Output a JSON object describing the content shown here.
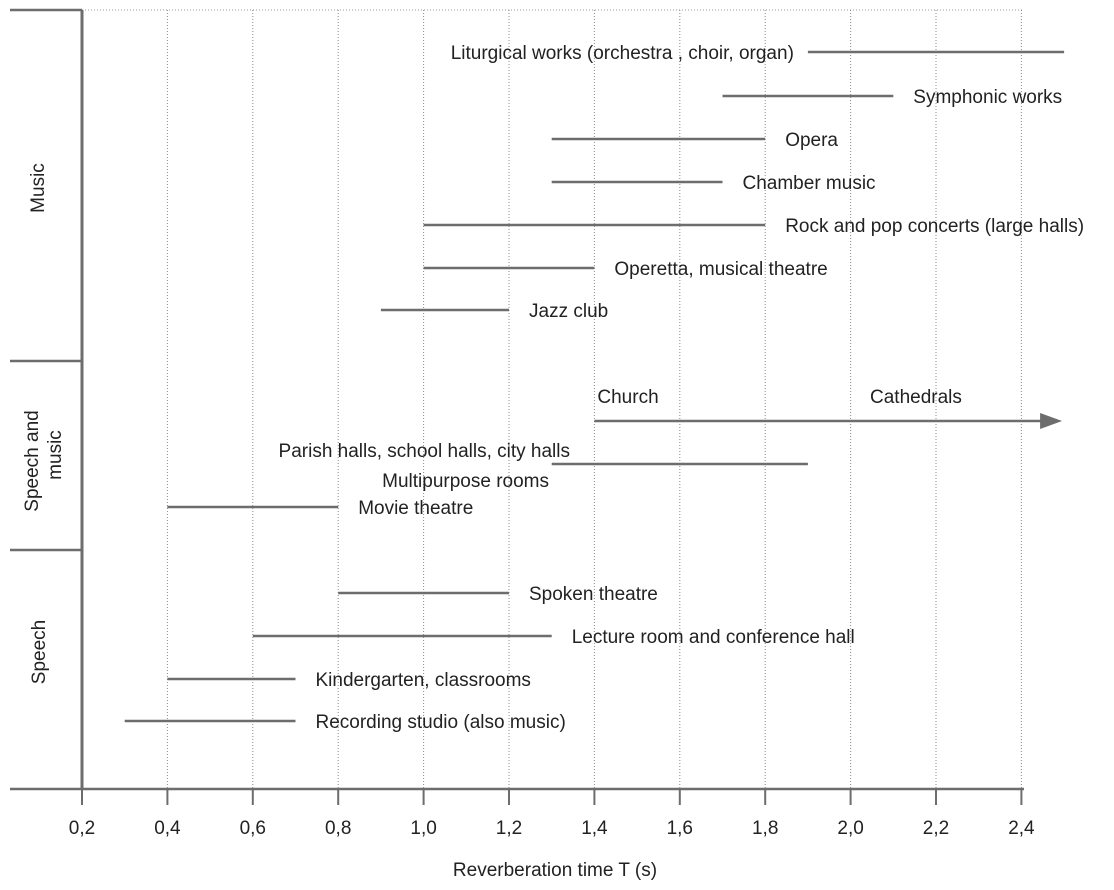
{
  "chart_data": {
    "type": "range-bar",
    "xlabel": "Reverberation time T (s)",
    "xlim": [
      0.2,
      2.4
    ],
    "x_ticks": [
      "0,2",
      "0,4",
      "0,6",
      "0,8",
      "1,0",
      "1,2",
      "1,4",
      "1,6",
      "1,8",
      "2,0",
      "2,2",
      "2,4"
    ],
    "grid": "vertical dotted",
    "bar_color": "#6d6d6d",
    "groups": [
      {
        "name": "Music",
        "rows": [
          0,
          6
        ]
      },
      {
        "name": "Speech and music",
        "rows": [
          7,
          9
        ]
      },
      {
        "name": "Speech",
        "rows": [
          10,
          13
        ]
      }
    ],
    "series": [
      {
        "label": "Liturgical   works (orchestra , choir, organ)",
        "start": 1.9,
        "end": 2.5,
        "label_side": "left"
      },
      {
        "label": "Symphonic  works",
        "start": 1.7,
        "end": 2.1,
        "label_side": "right"
      },
      {
        "label": "Opera",
        "start": 1.3,
        "end": 1.8,
        "label_side": "right"
      },
      {
        "label": "Chamber music",
        "start": 1.3,
        "end": 1.7,
        "label_side": "right"
      },
      {
        "label": "Rock and pop concerts (large halls)",
        "start": 1.0,
        "end": 1.8,
        "label_side": "right"
      },
      {
        "label": "Operetta, musical theatre",
        "start": 1.0,
        "end": 1.4,
        "label_side": "right"
      },
      {
        "label": "Jazz club",
        "start": 0.9,
        "end": 1.2,
        "label_side": "right"
      },
      {
        "label": "Church",
        "label2": "Cathedrals",
        "start": 1.4,
        "end": 2.5,
        "arrow": true,
        "label_side": "above"
      },
      {
        "label": "Parish halls, school halls, city halls",
        "label2": "Multipurpose rooms",
        "start": 1.3,
        "end": 1.9,
        "label_side": "left"
      },
      {
        "label": "Movie theatre",
        "start": 0.4,
        "end": 0.8,
        "label_side": "right"
      },
      {
        "label": "Spoken theatre",
        "start": 0.8,
        "end": 1.2,
        "label_side": "right"
      },
      {
        "label": "Lecture room and conference hall",
        "start": 0.6,
        "end": 1.3,
        "label_side": "right"
      },
      {
        "label": "Kindergarten, classrooms",
        "start": 0.4,
        "end": 0.7,
        "label_side": "right"
      },
      {
        "label": "Recording studio (also music)",
        "start": 0.3,
        "end": 0.7,
        "label_side": "right"
      }
    ]
  }
}
